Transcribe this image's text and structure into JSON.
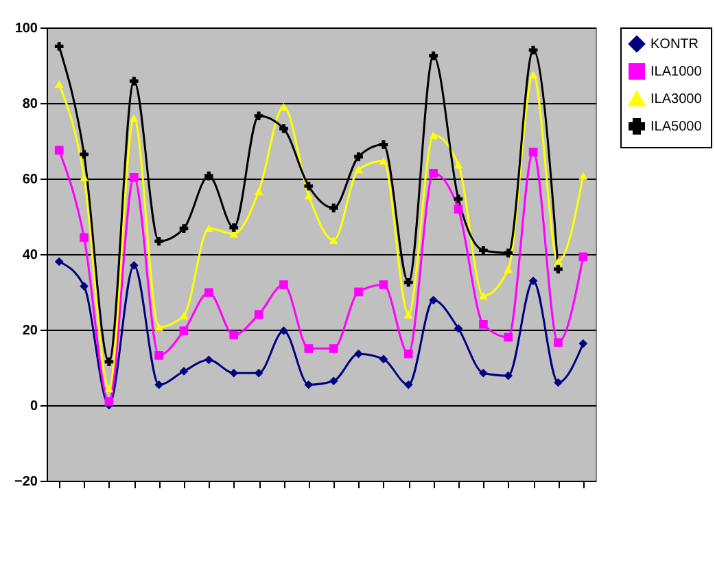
{
  "chart_data": {
    "type": "line",
    "categories": [
      null,
      null,
      null,
      null,
      null,
      null,
      null,
      null,
      null,
      null,
      null,
      null,
      null,
      null,
      null,
      null,
      null,
      null,
      null,
      null,
      null,
      null
    ],
    "series": [
      {
        "name": "KONTR",
        "color": "#000080",
        "marker": "diamond",
        "values": [
          38,
          31.5,
          0,
          37,
          5.4,
          9,
          12,
          8.5,
          8.5,
          19.7,
          5.4,
          6.4,
          13.6,
          12.2,
          5.4,
          27.8,
          20.3,
          8.5,
          7.8,
          32.9,
          6,
          16.3
        ]
      },
      {
        "name": "ILA1000",
        "color": "#ff00ff",
        "marker": "square",
        "values": [
          67.5,
          44.4,
          1,
          60.3,
          13.2,
          19.7,
          29.8,
          18.6,
          24,
          31.9,
          15,
          15,
          30,
          31.9,
          13.6,
          61.4,
          51.9,
          21.4,
          18,
          67,
          16.6,
          39.3
        ]
      },
      {
        "name": "ILA3000",
        "color": "#ffff00",
        "marker": "triangle",
        "values": [
          85,
          60.3,
          4.4,
          76,
          20.7,
          23.7,
          46.8,
          45.4,
          56.6,
          79,
          55.5,
          43.7,
          62.4,
          64.7,
          24,
          71.5,
          63.7,
          29,
          36,
          87.5,
          38,
          60.7
        ]
      },
      {
        "name": "ILA5000",
        "color": "#000000",
        "marker": "cross",
        "values": [
          95,
          66.4,
          11.5,
          85.8,
          43.4,
          46.8,
          60.7,
          47,
          76.6,
          73.2,
          58,
          52.2,
          65.8,
          69,
          32.5,
          92.5,
          54.6,
          41,
          40.3,
          94,
          36,
          null
        ]
      }
    ],
    "ylim": [
      -20,
      100
    ],
    "yticks": [
      -20,
      0,
      20,
      40,
      60,
      80,
      100
    ],
    "grid": "y",
    "legend": "top right"
  }
}
